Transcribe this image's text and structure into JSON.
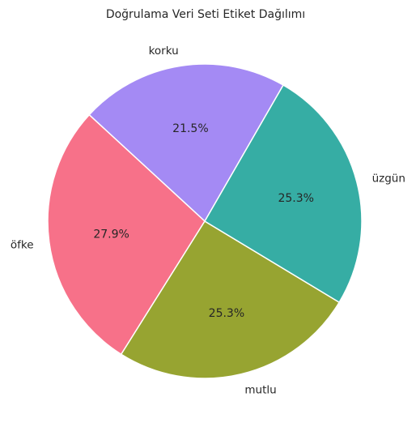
{
  "chart_data": {
    "type": "pie",
    "title": "Doğrulama Veri Seti Etiket Dağılımı",
    "categories": [
      "korku",
      "öfke",
      "mutlu",
      "üzgün"
    ],
    "values": [
      21.5,
      27.9,
      25.3,
      25.3
    ],
    "percent_labels": [
      "21.5%",
      "27.9%",
      "25.3%",
      "25.3%"
    ],
    "colors": [
      "#a48af4",
      "#f77189",
      "#97a431",
      "#36ada4"
    ],
    "start_angle_deg": 60,
    "direction": "counterclockwise",
    "legend": "none"
  }
}
